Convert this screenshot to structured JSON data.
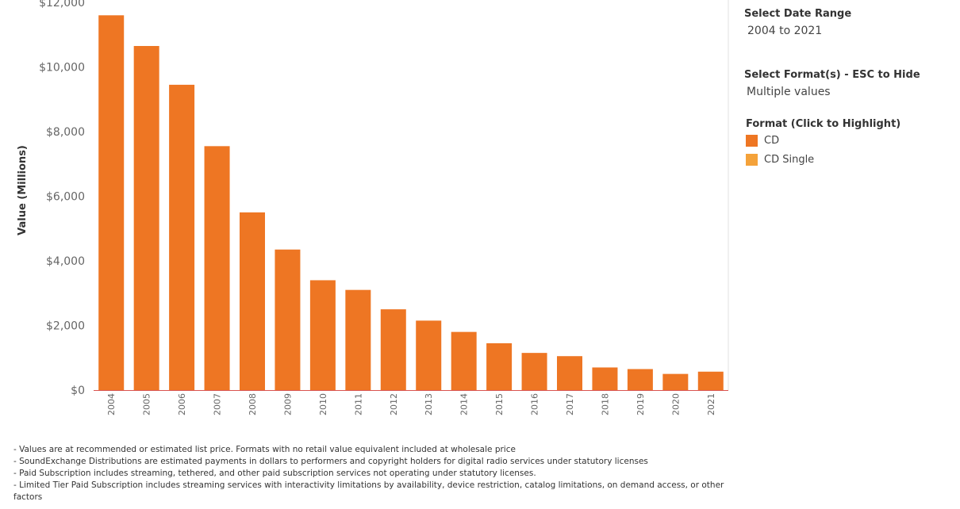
{
  "chart_data": {
    "type": "bar",
    "categories": [
      "2004",
      "2005",
      "2006",
      "2007",
      "2008",
      "2009",
      "2010",
      "2011",
      "2012",
      "2013",
      "2014",
      "2015",
      "2016",
      "2017",
      "2018",
      "2019",
      "2020",
      "2021"
    ],
    "series": [
      {
        "name": "CD",
        "values": [
          11600,
          10650,
          9450,
          7550,
          5500,
          4350,
          3400,
          3100,
          2500,
          2150,
          1800,
          1450,
          1150,
          1050,
          700,
          650,
          500,
          570
        ]
      }
    ],
    "ylabel": "Value (Millions)",
    "yticks": [
      "$0",
      "$2,000",
      "$4,000",
      "$6,000",
      "$8,000",
      "$10,000",
      "$12,000"
    ],
    "ytick_values": [
      0,
      2000,
      4000,
      6000,
      8000,
      10000,
      12000
    ],
    "ylim": [
      0,
      12000
    ],
    "grid": false,
    "bar_color": "#EE7623"
  },
  "filters": {
    "date_range_title": "Select Date Range",
    "date_range_value": "2004 to 2021",
    "format_title": "Select Format(s) - ESC to Hide",
    "format_value": "Multiple values"
  },
  "legend": {
    "title": "Format (Click to Highlight)",
    "items": [
      {
        "label": "CD",
        "color": "#EE7623"
      },
      {
        "label": "CD Single",
        "color": "#F4A23A"
      }
    ]
  },
  "notes": [
    "- Values are at recommended or estimated list price. Formats with no retail value equivalent included at wholesale price",
    "- SoundExchange Distributions are estimated payments in dollars to performers and copyright holders for digital radio services under statutory licenses",
    "- Paid Subscription includes streaming, tethered, and other paid subscription services not operating under statutory licenses.",
    "- Limited Tier Paid Subscription includes streaming services with interactivity limitations by availability, device restriction, catalog limitations, on demand access, or other factors"
  ]
}
